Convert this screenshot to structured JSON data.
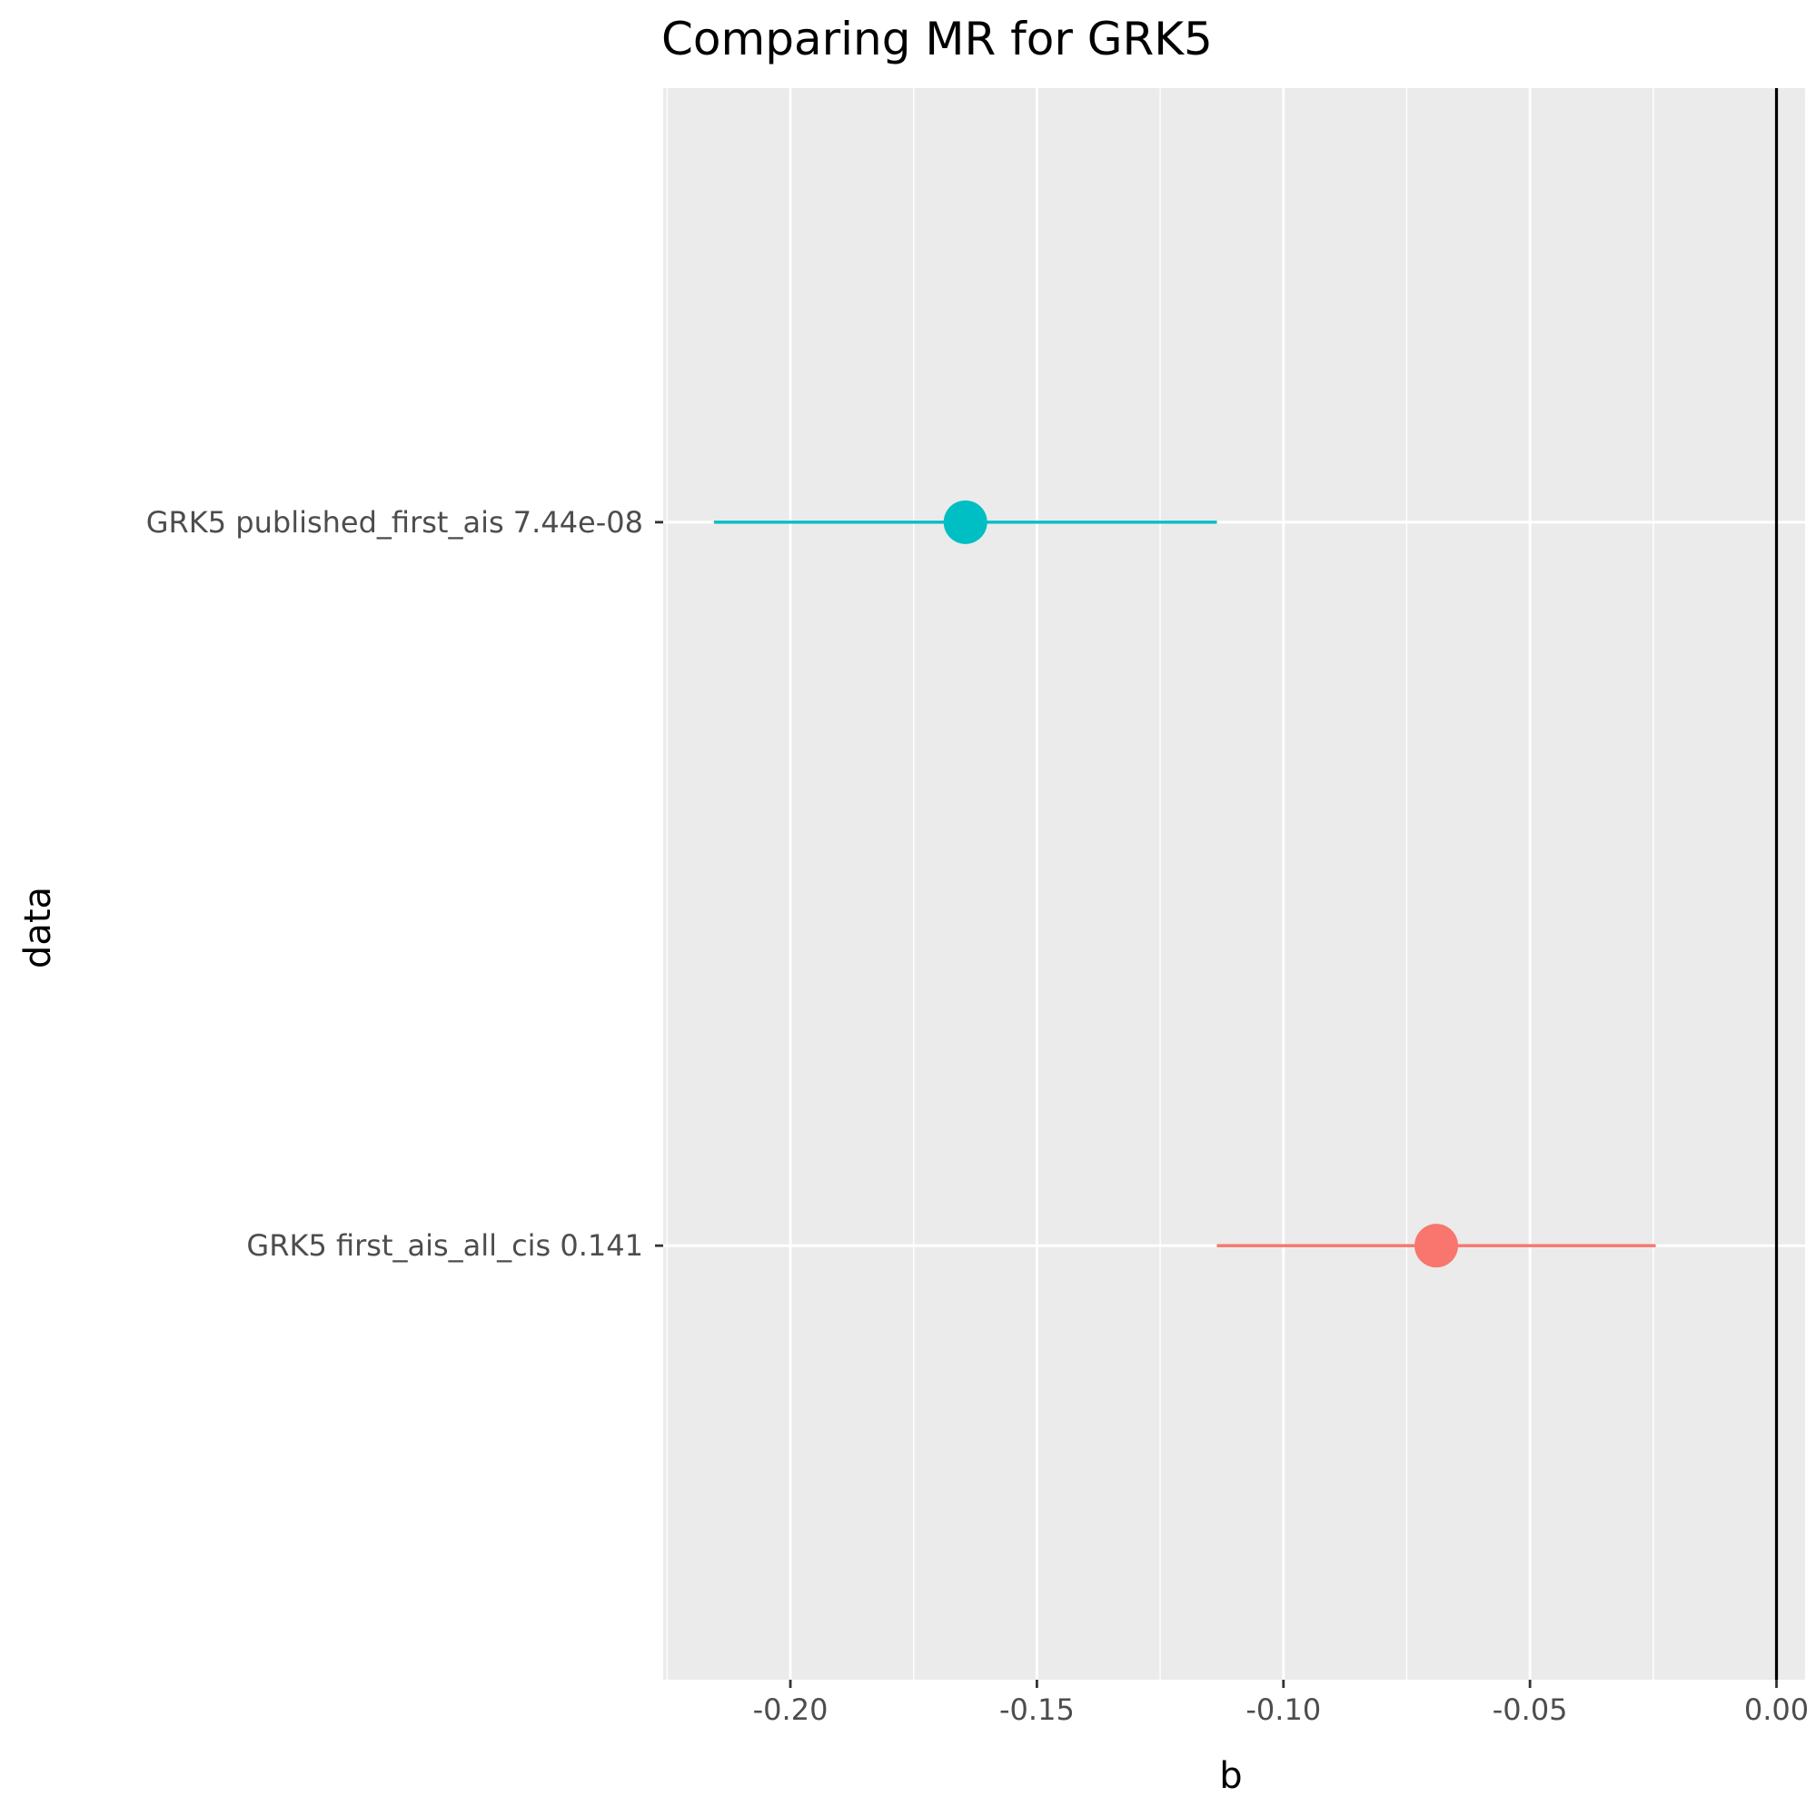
{
  "chart_data": {
    "type": "forest",
    "title": "Comparing MR for GRK5",
    "xlabel": "b",
    "ylabel": "data",
    "xlim": [
      -0.2258,
      0.0058
    ],
    "x_ticks": [
      {
        "value": -0.2,
        "label": "-0.20"
      },
      {
        "value": -0.15,
        "label": "-0.15"
      },
      {
        "value": -0.1,
        "label": "-0.10"
      },
      {
        "value": -0.05,
        "label": "-0.05"
      },
      {
        "value": 0.0,
        "label": "0.00"
      }
    ],
    "x_minor_ticks": [
      -0.225,
      -0.175,
      -0.125,
      -0.075,
      -0.025
    ],
    "reference_line": 0.0,
    "grid": true,
    "legend": "none",
    "rows": [
      {
        "label": "GRK5 published_first_ais 7.44e-08",
        "b": -0.1645,
        "lo": -0.2155,
        "hi": -0.1135,
        "color": "#00BFC4"
      },
      {
        "label": "GRK5 first_ais_all_cis 0.141",
        "b": -0.069,
        "lo": -0.1135,
        "hi": -0.0245,
        "color": "#F8766D"
      }
    ],
    "colors": {
      "panel_background": "#EBEBEB",
      "grid": "#FFFFFF",
      "reference_line": "#000000"
    }
  }
}
